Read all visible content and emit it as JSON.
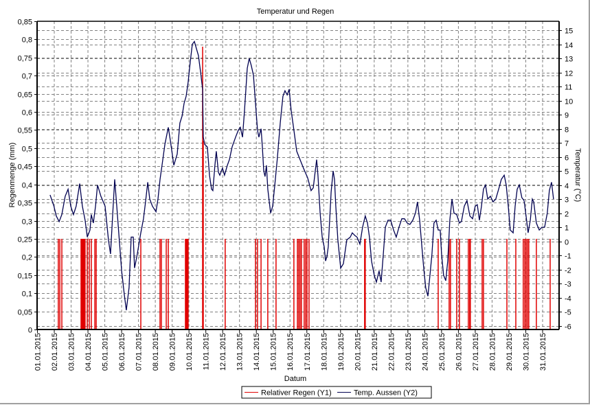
{
  "chart_data": {
    "type": "line",
    "title": "Temperatur und Regen",
    "xlabel": "Datum",
    "ylabel": "Regenmenge (mm)",
    "y2label": "Temperatur (°C)",
    "x_ticks": [
      "01.01.2015",
      "02.01.2015",
      "03.01.2015",
      "04.01.2015",
      "05.01.2015",
      "06.01.2015",
      "07.01.2015",
      "08.01.2015",
      "09.01.2015",
      "10.01.2015",
      "11.01.2015",
      "12.01.2015",
      "13.01.2015",
      "14.01.2015",
      "15.01.2015",
      "16.01.2015",
      "17.01.2015",
      "18.01.2015",
      "19.01.2015",
      "20.01.2015",
      "21.01.2015",
      "22.01.2015",
      "23.01.2015",
      "24.01.2015",
      "25.01.2015",
      "26.01.2015",
      "27.01.2015",
      "28.01.2015",
      "29.01.2015",
      "30.01.2015",
      "31.01.2015"
    ],
    "x_range_days": [
      0,
      31
    ],
    "y1_ticks": [
      "0",
      "0,05",
      "0,1",
      "0,15",
      "0,2",
      "0,25",
      "0,3",
      "0,35",
      "0,4",
      "0,45",
      "0,5",
      "0,55",
      "0,6",
      "0,65",
      "0,7",
      "0,75",
      "0,8",
      "0,85"
    ],
    "y1_range": [
      0,
      0.85
    ],
    "y2_ticks": [
      "-6",
      "-5",
      "-4",
      "-3",
      "-2",
      "-1",
      "0",
      "1",
      "2",
      "3",
      "4",
      "5",
      "6",
      "7",
      "8",
      "9",
      "10",
      "11",
      "12",
      "13",
      "14",
      "15"
    ],
    "y2_range": [
      -6,
      15
    ],
    "grid": true,
    "legend_position": "bottom",
    "colors": {
      "rain": "#e00000",
      "temp": "#000050",
      "grid": "#808080"
    },
    "series": [
      {
        "name": "Relativer Regen (Y1)",
        "type": "bar",
        "axis": "y1",
        "points": [
          [
            1.26,
            0.25
          ],
          [
            1.35,
            0.25
          ],
          [
            1.47,
            0.25
          ],
          [
            2.61,
            0.25
          ],
          [
            2.65,
            0.25
          ],
          [
            2.69,
            0.25
          ],
          [
            2.73,
            0.25
          ],
          [
            2.77,
            0.25
          ],
          [
            2.81,
            0.25
          ],
          [
            2.85,
            0.25
          ],
          [
            2.98,
            0.25
          ],
          [
            3.1,
            0.25
          ],
          [
            3.22,
            0.25
          ],
          [
            3.43,
            0.25
          ],
          [
            3.51,
            0.25
          ],
          [
            6.16,
            0.25
          ],
          [
            7.3,
            0.25
          ],
          [
            7.38,
            0.25
          ],
          [
            7.67,
            0.25
          ],
          [
            7.79,
            0.25
          ],
          [
            8.81,
            0.25
          ],
          [
            8.85,
            0.25
          ],
          [
            8.89,
            0.25
          ],
          [
            8.93,
            0.25
          ],
          [
            8.97,
            0.25
          ],
          [
            9.83,
            0.78
          ],
          [
            9.87,
            0.52
          ],
          [
            11.17,
            0.25
          ],
          [
            12.97,
            0.25
          ],
          [
            13.09,
            0.25
          ],
          [
            13.3,
            0.25
          ],
          [
            13.7,
            0.25
          ],
          [
            14.19,
            0.25
          ],
          [
            15.25,
            0.25
          ],
          [
            15.46,
            0.25
          ],
          [
            15.54,
            0.25
          ],
          [
            15.62,
            0.25
          ],
          [
            15.7,
            0.25
          ],
          [
            15.86,
            0.25
          ],
          [
            15.95,
            0.25
          ],
          [
            16.03,
            0.25
          ],
          [
            16.15,
            0.25
          ],
          [
            19.45,
            0.25
          ],
          [
            19.49,
            0.25
          ],
          [
            23.82,
            0.25
          ],
          [
            24.47,
            0.25
          ],
          [
            24.55,
            0.25
          ],
          [
            24.92,
            0.25
          ],
          [
            25.08,
            0.25
          ],
          [
            25.61,
            0.25
          ],
          [
            25.69,
            0.25
          ],
          [
            25.73,
            0.25
          ],
          [
            26.43,
            0.25
          ],
          [
            26.51,
            0.25
          ],
          [
            27.9,
            0.25
          ],
          [
            28.43,
            0.25
          ],
          [
            28.87,
            0.25
          ],
          [
            28.96,
            0.25
          ],
          [
            29.04,
            0.25
          ],
          [
            29.12,
            0.25
          ],
          [
            29.2,
            0.25
          ],
          [
            29.65,
            0.25
          ],
          [
            30.47,
            0.25
          ]
        ]
      },
      {
        "name": "Temp. Aussen (Y2)",
        "type": "line",
        "axis": "y2",
        "points": [
          [
            0.77,
            3.3
          ],
          [
            1.0,
            2.5
          ],
          [
            1.14,
            1.8
          ],
          [
            1.31,
            1.4
          ],
          [
            1.47,
            1.9
          ],
          [
            1.67,
            3.2
          ],
          [
            1.84,
            3.7
          ],
          [
            2.0,
            2.5
          ],
          [
            2.16,
            1.9
          ],
          [
            2.32,
            2.5
          ],
          [
            2.53,
            4.1
          ],
          [
            2.69,
            2.5
          ],
          [
            2.85,
            1.5
          ],
          [
            2.98,
            0.3
          ],
          [
            3.14,
            0.8
          ],
          [
            3.22,
            1.9
          ],
          [
            3.34,
            1.3
          ],
          [
            3.47,
            2.5
          ],
          [
            3.59,
            4.0
          ],
          [
            3.79,
            3.2
          ],
          [
            4.04,
            2.5
          ],
          [
            4.24,
            0.1
          ],
          [
            4.36,
            -0.9
          ],
          [
            4.53,
            2.8
          ],
          [
            4.61,
            4.4
          ],
          [
            4.73,
            2.5
          ],
          [
            4.85,
            0.6
          ],
          [
            5.02,
            -2.1
          ],
          [
            5.18,
            -3.8
          ],
          [
            5.3,
            -4.9
          ],
          [
            5.46,
            -3.3
          ],
          [
            5.59,
            0.3
          ],
          [
            5.71,
            0.3
          ],
          [
            5.79,
            -1.9
          ],
          [
            5.95,
            -0.9
          ],
          [
            6.16,
            0.6
          ],
          [
            6.32,
            1.6
          ],
          [
            6.44,
            2.8
          ],
          [
            6.57,
            4.2
          ],
          [
            6.69,
            3.0
          ],
          [
            6.85,
            2.5
          ],
          [
            7.06,
            2.1
          ],
          [
            7.18,
            3.0
          ],
          [
            7.3,
            4.4
          ],
          [
            7.42,
            5.4
          ],
          [
            7.59,
            6.9
          ],
          [
            7.79,
            8.1
          ],
          [
            7.91,
            7.2
          ],
          [
            8.12,
            5.4
          ],
          [
            8.32,
            6.2
          ],
          [
            8.48,
            8.4
          ],
          [
            8.61,
            8.9
          ],
          [
            8.73,
            9.8
          ],
          [
            8.85,
            10.3
          ],
          [
            8.97,
            11.3
          ],
          [
            9.1,
            12.8
          ],
          [
            9.22,
            14.0
          ],
          [
            9.34,
            14.2
          ],
          [
            9.46,
            13.7
          ],
          [
            9.58,
            13.2
          ],
          [
            9.71,
            12.0
          ],
          [
            9.83,
            10.8
          ],
          [
            9.87,
            7.4
          ],
          [
            9.95,
            6.9
          ],
          [
            10.11,
            6.7
          ],
          [
            10.24,
            4.7
          ],
          [
            10.36,
            3.7
          ],
          [
            10.44,
            3.6
          ],
          [
            10.56,
            5.4
          ],
          [
            10.64,
            6.4
          ],
          [
            10.77,
            4.9
          ],
          [
            10.85,
            4.7
          ],
          [
            11.01,
            5.2
          ],
          [
            11.13,
            4.7
          ],
          [
            11.3,
            5.4
          ],
          [
            11.42,
            5.8
          ],
          [
            11.58,
            6.7
          ],
          [
            11.79,
            7.4
          ],
          [
            11.95,
            7.9
          ],
          [
            12.07,
            8.1
          ],
          [
            12.2,
            7.4
          ],
          [
            12.32,
            9.3
          ],
          [
            12.48,
            12.3
          ],
          [
            12.6,
            13.0
          ],
          [
            12.72,
            12.5
          ],
          [
            12.85,
            11.8
          ],
          [
            12.97,
            9.8
          ],
          [
            13.09,
            7.9
          ],
          [
            13.17,
            7.4
          ],
          [
            13.3,
            8.0
          ],
          [
            13.38,
            6.7
          ],
          [
            13.46,
            5.0
          ],
          [
            13.54,
            4.6
          ],
          [
            13.62,
            5.4
          ],
          [
            13.7,
            3.7
          ],
          [
            13.87,
            2.0
          ],
          [
            13.99,
            2.5
          ],
          [
            14.11,
            3.9
          ],
          [
            14.27,
            5.9
          ],
          [
            14.44,
            8.4
          ],
          [
            14.6,
            10.3
          ],
          [
            14.72,
            10.7
          ],
          [
            14.85,
            10.4
          ],
          [
            14.97,
            10.8
          ],
          [
            15.09,
            9.3
          ],
          [
            15.25,
            7.9
          ],
          [
            15.42,
            6.4
          ],
          [
            15.62,
            5.8
          ],
          [
            15.82,
            5.2
          ],
          [
            16.07,
            4.5
          ],
          [
            16.27,
            3.6
          ],
          [
            16.4,
            3.8
          ],
          [
            16.52,
            5.0
          ],
          [
            16.6,
            5.8
          ],
          [
            16.68,
            4.7
          ],
          [
            16.81,
            2.0
          ],
          [
            16.93,
            0.3
          ],
          [
            17.05,
            -0.4
          ],
          [
            17.13,
            -1.4
          ],
          [
            17.21,
            -1.1
          ],
          [
            17.29,
            -0.4
          ],
          [
            17.46,
            3.5
          ],
          [
            17.58,
            5.0
          ],
          [
            17.66,
            4.4
          ],
          [
            17.74,
            2.5
          ],
          [
            17.86,
            0.1
          ],
          [
            18.03,
            -1.9
          ],
          [
            18.19,
            -1.6
          ],
          [
            18.39,
            0.1
          ],
          [
            18.6,
            0.3
          ],
          [
            18.72,
            0.6
          ],
          [
            18.88,
            0.4
          ],
          [
            19.0,
            0.3
          ],
          [
            19.17,
            -0.2
          ],
          [
            19.33,
            1.0
          ],
          [
            19.49,
            1.8
          ],
          [
            19.62,
            1.3
          ],
          [
            19.74,
            0.3
          ],
          [
            19.86,
            -1.4
          ],
          [
            20.02,
            -2.4
          ],
          [
            20.15,
            -2.9
          ],
          [
            20.31,
            -2.1
          ],
          [
            20.43,
            -2.9
          ],
          [
            20.56,
            -0.9
          ],
          [
            20.68,
            1.0
          ],
          [
            20.84,
            1.5
          ],
          [
            21.0,
            1.5
          ],
          [
            21.17,
            0.8
          ],
          [
            21.33,
            0.3
          ],
          [
            21.49,
            1.0
          ],
          [
            21.66,
            1.6
          ],
          [
            21.82,
            1.6
          ],
          [
            21.98,
            1.3
          ],
          [
            22.14,
            1.2
          ],
          [
            22.31,
            1.5
          ],
          [
            22.47,
            2.0
          ],
          [
            22.59,
            2.8
          ],
          [
            22.72,
            1.5
          ],
          [
            22.84,
            -0.2
          ],
          [
            22.96,
            -1.9
          ],
          [
            23.08,
            -3.3
          ],
          [
            23.21,
            -3.9
          ],
          [
            23.33,
            -2.4
          ],
          [
            23.45,
            -0.9
          ],
          [
            23.57,
            1.3
          ],
          [
            23.7,
            1.5
          ],
          [
            23.82,
            0.8
          ],
          [
            23.94,
            0.8
          ],
          [
            24.02,
            -0.9
          ],
          [
            24.14,
            -2.4
          ],
          [
            24.27,
            -2.8
          ],
          [
            24.39,
            -1.4
          ],
          [
            24.51,
            1.5
          ],
          [
            24.64,
            3.0
          ],
          [
            24.76,
            2.0
          ],
          [
            24.92,
            1.9
          ],
          [
            25.08,
            1.3
          ],
          [
            25.2,
            1.4
          ],
          [
            25.37,
            2.5
          ],
          [
            25.53,
            2.9
          ],
          [
            25.7,
            1.8
          ],
          [
            25.86,
            1.6
          ],
          [
            26.02,
            2.5
          ],
          [
            26.14,
            2.6
          ],
          [
            26.27,
            1.5
          ],
          [
            26.39,
            2.5
          ],
          [
            26.51,
            3.7
          ],
          [
            26.63,
            4.0
          ],
          [
            26.76,
            3.0
          ],
          [
            26.92,
            3.2
          ],
          [
            27.08,
            2.8
          ],
          [
            27.24,
            3.0
          ],
          [
            27.41,
            3.7
          ],
          [
            27.57,
            4.4
          ],
          [
            27.74,
            4.7
          ],
          [
            27.86,
            4.0
          ],
          [
            27.98,
            2.5
          ],
          [
            28.1,
            0.8
          ],
          [
            28.27,
            0.6
          ],
          [
            28.39,
            2.5
          ],
          [
            28.51,
            3.7
          ],
          [
            28.64,
            4.0
          ],
          [
            28.79,
            3.1
          ],
          [
            28.92,
            2.9
          ],
          [
            29.04,
            1.8
          ],
          [
            29.16,
            0.6
          ],
          [
            29.29,
            1.5
          ],
          [
            29.41,
            3.0
          ],
          [
            29.49,
            2.8
          ],
          [
            29.65,
            1.3
          ],
          [
            29.82,
            0.8
          ],
          [
            29.98,
            1.0
          ],
          [
            30.14,
            1.0
          ],
          [
            30.3,
            2.0
          ],
          [
            30.42,
            3.6
          ],
          [
            30.55,
            4.2
          ],
          [
            30.67,
            3.0
          ]
        ]
      }
    ]
  }
}
